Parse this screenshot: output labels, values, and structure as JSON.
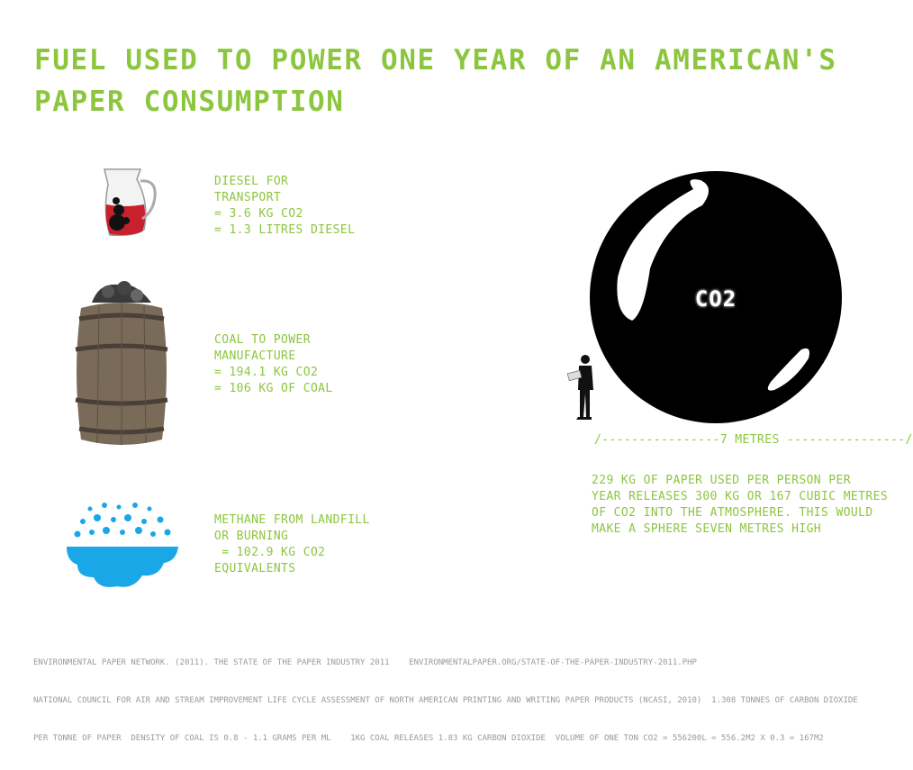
{
  "title": {
    "line1": "Fuel used to power one year of an American's",
    "line2": "paper consumption"
  },
  "items": [
    {
      "icon": "jug-icon",
      "lines": [
        "Diesel for",
        "transport",
        "= 3.6 kg CO2",
        "= 1.3 litres diesel"
      ]
    },
    {
      "icon": "coal-barrel-icon",
      "lines": [
        "Coal to power",
        "manufacture",
        "= 194.1 kg CO2",
        "= 106 kg of coal"
      ]
    },
    {
      "icon": "cloud-icon",
      "lines": [
        "Methane from landfill",
        "or burning",
        " = 102.9 kg CO2",
        "equivalents"
      ]
    }
  ],
  "sphere": {
    "label": "CO2",
    "measure": "/----------------7 metres ----------------/",
    "description": [
      "229 kg of paper used per person per",
      "year releases 300 kg or 167 cubic metres",
      "of CO2 into the atmosphere. This would",
      "make a sphere seven metres high"
    ]
  },
  "footer": [
    "Environmental Paper Network. (2011). The State of the Paper Industry 2011    environmentalpaper.org/state-of-the-paper-industry-2011.php",
    "National Council for Air and Stream Improvement Life Cycle Assessment of North American Printing and Writing Paper Products (NCASI, 2010)  1.308 tonnes of carbon dioxide",
    "per tonne of paper  Density of coal is 0.8 - 1.1 grams per ml    1kg coal releases 1.83 kg carbon dioxide  Volume of one ton CO2 = 556200L = 556.2m2 x 0.3 = 167m2"
  ],
  "colors": {
    "accent": "#8cc63f",
    "footer": "#9a9a9a",
    "sphere": "#000000",
    "cloud": "#1aa7e8"
  }
}
